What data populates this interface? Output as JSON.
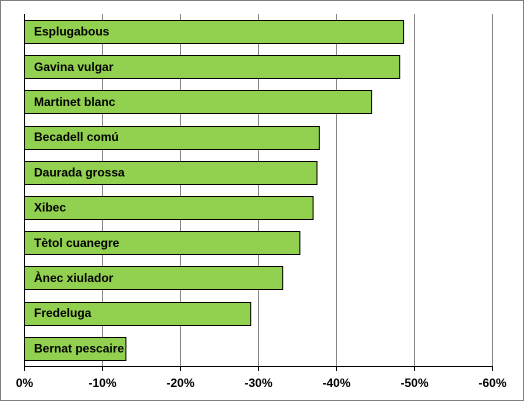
{
  "chart_data": {
    "type": "bar",
    "orientation": "horizontal",
    "categories": [
      "Esplugabous",
      "Gavina vulgar",
      "Martinet blanc",
      "Becadell comú",
      "Daurada grossa",
      "Xibec",
      "Tètol cuanegre",
      "Ànec xiulador",
      "Fredeluga",
      "Bernat pescaire"
    ],
    "values": [
      -48.6,
      -48.1,
      -44.5,
      -37.8,
      -37.5,
      -37.0,
      -35.3,
      -33.1,
      -29.0,
      -13.0
    ],
    "title": "",
    "xlabel": "",
    "ylabel": "",
    "xlim": [
      0,
      -60
    ],
    "x_ticks": [
      0,
      -10,
      -20,
      -30,
      -40,
      -50,
      -60
    ],
    "x_tick_labels": [
      "0%",
      "-10%",
      "-20%",
      "-30%",
      "-40%",
      "-50%",
      "-60%"
    ],
    "grid": "vertical",
    "legend": "none",
    "colors": {
      "bar_fill": "#92d050",
      "bar_stroke": "#000000",
      "gridline": "#868686",
      "frame": "#7f7f7f"
    }
  }
}
